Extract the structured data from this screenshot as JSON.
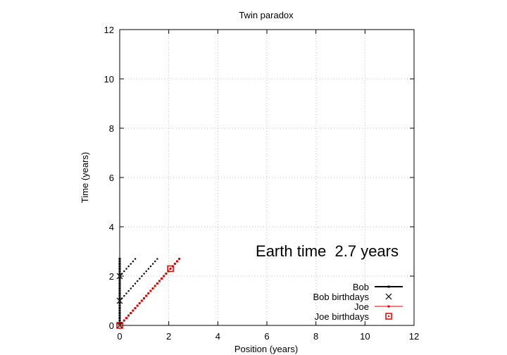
{
  "chart_data": {
    "type": "scatter",
    "title": "Twin paradox",
    "xlabel": "Position (years)",
    "ylabel": "Time (years)",
    "xlim": [
      0,
      12
    ],
    "ylim": [
      0,
      12
    ],
    "xticks": [
      "0",
      "2",
      "4",
      "6",
      "8",
      "10",
      "12"
    ],
    "yticks": [
      "0",
      "2",
      "4",
      "6",
      "8",
      "10",
      "12"
    ],
    "grid": true,
    "legend_placement": "bottom-right",
    "annotation": "Earth time  2.7 years",
    "series": [
      {
        "name": "Bob",
        "style": "points",
        "color": "#000000",
        "points": [
          [
            0,
            0
          ],
          [
            0,
            0.1
          ],
          [
            0,
            0.2
          ],
          [
            0,
            0.3
          ],
          [
            0,
            0.4
          ],
          [
            0,
            0.5
          ],
          [
            0,
            0.6
          ],
          [
            0,
            0.7
          ],
          [
            0,
            0.8
          ],
          [
            0,
            0.9
          ],
          [
            0,
            1.0
          ],
          [
            0,
            1.1
          ],
          [
            0,
            1.2
          ],
          [
            0,
            1.3
          ],
          [
            0,
            1.4
          ],
          [
            0,
            1.5
          ],
          [
            0,
            1.6
          ],
          [
            0,
            1.7
          ],
          [
            0,
            1.8
          ],
          [
            0,
            1.9
          ],
          [
            0,
            2.0
          ],
          [
            0,
            2.1
          ],
          [
            0,
            2.2
          ],
          [
            0,
            2.3
          ],
          [
            0,
            2.4
          ],
          [
            0,
            2.5
          ],
          [
            0,
            2.6
          ],
          [
            0,
            2.7
          ]
        ]
      },
      {
        "name": "Bob birthdays",
        "style": "cross",
        "color": "#000000",
        "points": [
          [
            0,
            0
          ],
          [
            0,
            1
          ],
          [
            0,
            2
          ]
        ]
      },
      {
        "name": "Joe",
        "style": "points",
        "color": "#e00000",
        "points": [
          [
            0,
            0
          ],
          [
            0.09,
            0.1
          ],
          [
            0.18,
            0.2
          ],
          [
            0.27,
            0.3
          ],
          [
            0.36,
            0.4
          ],
          [
            0.45,
            0.5
          ],
          [
            0.54,
            0.6
          ],
          [
            0.63,
            0.7
          ],
          [
            0.72,
            0.8
          ],
          [
            0.81,
            0.9
          ],
          [
            0.9,
            1.0
          ],
          [
            0.99,
            1.1
          ],
          [
            1.08,
            1.2
          ],
          [
            1.17,
            1.3
          ],
          [
            1.26,
            1.4
          ],
          [
            1.35,
            1.5
          ],
          [
            1.44,
            1.6
          ],
          [
            1.53,
            1.7
          ],
          [
            1.62,
            1.8
          ],
          [
            1.71,
            1.9
          ],
          [
            1.8,
            2.0
          ],
          [
            1.89,
            2.1
          ],
          [
            1.98,
            2.2
          ],
          [
            2.07,
            2.3
          ],
          [
            2.16,
            2.4
          ],
          [
            2.25,
            2.5
          ],
          [
            2.34,
            2.6
          ],
          [
            2.43,
            2.7
          ]
        ]
      },
      {
        "name": "Joe birthdays",
        "style": "square",
        "color": "#e00000",
        "points": [
          [
            0,
            0
          ],
          [
            2.07,
            2.3
          ]
        ]
      },
      {
        "name": "",
        "style": "dots",
        "color": "#000000",
        "points": [
          [
            0,
            1.0
          ],
          [
            0.09,
            1.1
          ],
          [
            0.18,
            1.2
          ],
          [
            0.27,
            1.3
          ],
          [
            0.36,
            1.4
          ],
          [
            0.45,
            1.5
          ],
          [
            0.54,
            1.6
          ],
          [
            0.63,
            1.7
          ],
          [
            0.72,
            1.8
          ],
          [
            0.81,
            1.9
          ],
          [
            0.9,
            2.0
          ],
          [
            0.99,
            2.1
          ],
          [
            1.08,
            2.2
          ],
          [
            1.17,
            2.3
          ],
          [
            1.26,
            2.4
          ],
          [
            1.35,
            2.5
          ],
          [
            1.44,
            2.6
          ],
          [
            1.53,
            2.7
          ]
        ]
      },
      {
        "name": "",
        "style": "dots",
        "color": "#000000",
        "points": [
          [
            0,
            2.0
          ],
          [
            0.09,
            2.1
          ],
          [
            0.18,
            2.2
          ],
          [
            0.27,
            2.3
          ],
          [
            0.36,
            2.4
          ],
          [
            0.45,
            2.5
          ],
          [
            0.54,
            2.6
          ],
          [
            0.63,
            2.7
          ]
        ]
      }
    ]
  }
}
